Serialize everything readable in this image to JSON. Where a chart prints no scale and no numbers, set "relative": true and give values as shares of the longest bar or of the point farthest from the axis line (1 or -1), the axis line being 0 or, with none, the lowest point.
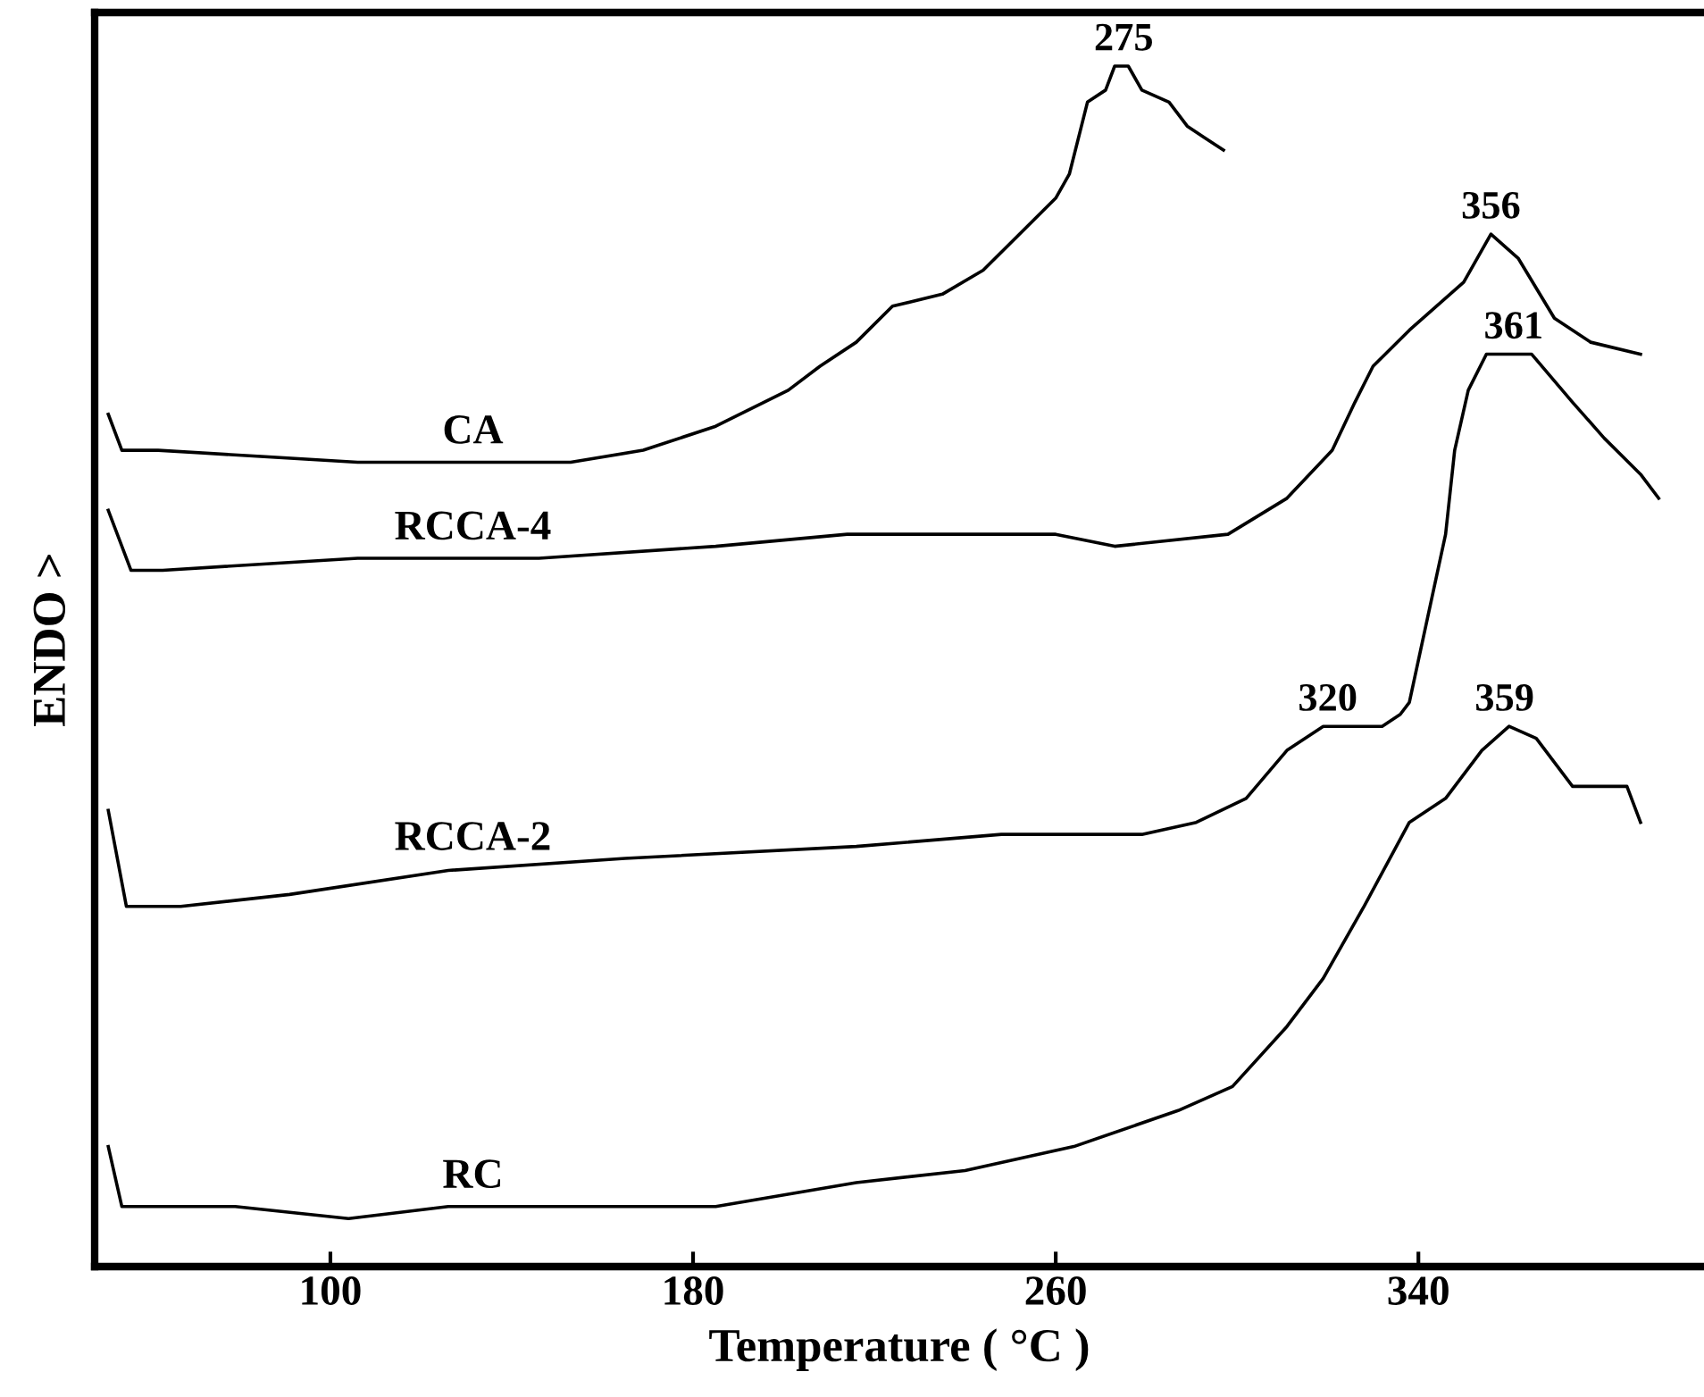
{
  "chart_data": {
    "type": "line",
    "relative": true,
    "xlabel": "Temperature ( °C )",
    "ylabel": "ENDO >",
    "xlim": [
      48,
      403
    ],
    "xticks": [
      100,
      180,
      260,
      340
    ],
    "tick_labels": "x",
    "grid": false,
    "legend": false,
    "marker": "none",
    "line_style": "solid",
    "series": [
      {
        "name": "CA",
        "color": "#000000",
        "x": [
          51,
          54,
          62,
          106,
          142,
          153,
          169,
          185,
          201,
          208,
          216,
          224,
          235,
          244,
          260,
          263,
          267,
          271,
          273,
          276,
          279,
          285,
          289,
          293,
          297
        ],
        "values": [
          0.71,
          0.68,
          0.68,
          0.67,
          0.67,
          0.67,
          0.68,
          0.7,
          0.73,
          0.75,
          0.77,
          0.8,
          0.81,
          0.83,
          0.89,
          0.91,
          0.97,
          0.98,
          1.0,
          1.0,
          0.98,
          0.97,
          0.95,
          0.94,
          0.93
        ]
      },
      {
        "name": "RCCA-4",
        "color": "#000000",
        "x": [
          51,
          56,
          63,
          106,
          146,
          185,
          214,
          220,
          260,
          273,
          298,
          311,
          321,
          326,
          330,
          338,
          350,
          356,
          362,
          370,
          378,
          389
        ],
        "values": [
          0.63,
          0.58,
          0.58,
          0.59,
          0.59,
          0.6,
          0.61,
          0.61,
          0.61,
          0.6,
          0.61,
          0.64,
          0.68,
          0.72,
          0.75,
          0.78,
          0.82,
          0.86,
          0.84,
          0.79,
          0.77,
          0.76
        ]
      },
      {
        "name": "RCCA-2",
        "color": "#000000",
        "x": [
          51,
          55,
          67,
          91,
          126,
          165,
          216,
          248,
          279,
          291,
          302,
          311,
          319,
          328,
          332,
          336,
          338,
          342,
          346,
          348,
          351,
          355,
          360,
          365,
          374,
          381,
          389,
          393
        ],
        "values": [
          0.38,
          0.3,
          0.3,
          0.31,
          0.33,
          0.34,
          0.35,
          0.36,
          0.36,
          0.37,
          0.39,
          0.43,
          0.45,
          0.45,
          0.45,
          0.46,
          0.47,
          0.54,
          0.61,
          0.68,
          0.73,
          0.76,
          0.76,
          0.76,
          0.72,
          0.69,
          0.66,
          0.64
        ]
      },
      {
        "name": "RC",
        "color": "#000000",
        "x": [
          51,
          54,
          62,
          79,
          104,
          126,
          157,
          185,
          216,
          240,
          264,
          287,
          299,
          311,
          319,
          328,
          338,
          346,
          354,
          360,
          366,
          374,
          381,
          386,
          389
        ],
        "values": [
          0.1,
          0.05,
          0.05,
          0.05,
          0.04,
          0.05,
          0.05,
          0.05,
          0.07,
          0.08,
          0.1,
          0.13,
          0.15,
          0.2,
          0.24,
          0.3,
          0.37,
          0.39,
          0.43,
          0.45,
          0.44,
          0.4,
          0.4,
          0.4,
          0.37
        ]
      }
    ],
    "annotations": [
      {
        "text": "275",
        "x": 275,
        "y": 1.0
      },
      {
        "text": "356",
        "x": 356,
        "y": 0.86
      },
      {
        "text": "361",
        "x": 361,
        "y": 0.76
      },
      {
        "text": "320",
        "x": 320,
        "y": 0.45
      },
      {
        "text": "359",
        "x": 359,
        "y": 0.45
      }
    ]
  }
}
